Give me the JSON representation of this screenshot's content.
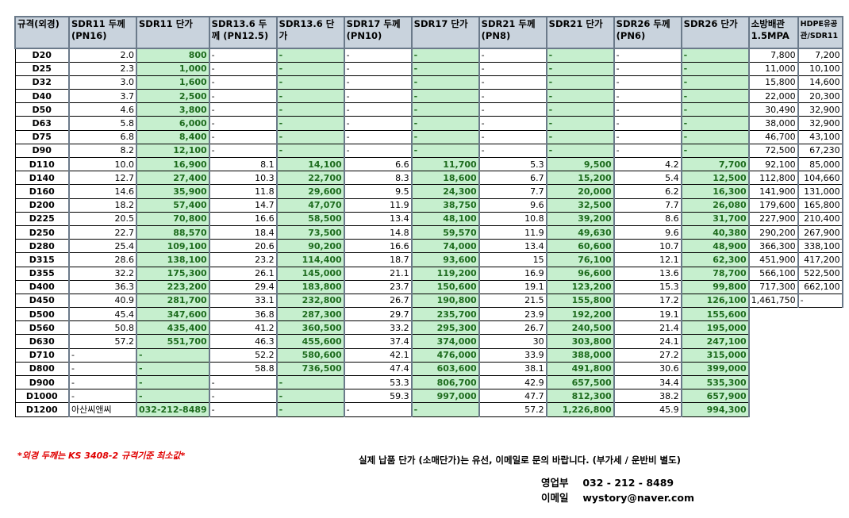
{
  "headers": [
    "규격(외경)",
    "SDR11 두께 (PN16)",
    "SDR11 단가",
    "SDR13.6 두께 (PN12.5)",
    "SDR13.6 단가",
    "SDR17 두께 (PN10)",
    "SDR17 단가",
    "SDR21 두께 (PN8)",
    "SDR21 단가",
    "SDR26 두께 (PN6)",
    "SDR26 단가",
    "소방배관 1.5MPA",
    "HDPE유공관/SDR11"
  ],
  "rows": [
    [
      "D20",
      "2.0",
      "800",
      "-",
      "-",
      "-",
      "-",
      "-",
      "-",
      "-",
      "-",
      "7,800",
      "7,200"
    ],
    [
      "D25",
      "2.3",
      "1,000",
      "-",
      "-",
      "-",
      "-",
      "-",
      "-",
      "-",
      "-",
      "11,000",
      "10,100"
    ],
    [
      "D32",
      "3.0",
      "1,600",
      "-",
      "-",
      "-",
      "-",
      "-",
      "-",
      "-",
      "-",
      "15,800",
      "14,600"
    ],
    [
      "D40",
      "3.7",
      "2,500",
      "-",
      "-",
      "-",
      "-",
      "-",
      "-",
      "-",
      "-",
      "22,000",
      "20,300"
    ],
    [
      "D50",
      "4.6",
      "3,800",
      "-",
      "-",
      "-",
      "-",
      "-",
      "-",
      "-",
      "-",
      "30,490",
      "32,900"
    ],
    [
      "D63",
      "5.8",
      "6,000",
      "-",
      "-",
      "-",
      "-",
      "-",
      "-",
      "-",
      "-",
      "38,000",
      "32,900"
    ],
    [
      "D75",
      "6.8",
      "8,400",
      "-",
      "-",
      "-",
      "-",
      "-",
      "-",
      "-",
      "-",
      "46,700",
      "43,100"
    ],
    [
      "D90",
      "8.2",
      "12,100",
      "-",
      "-",
      "-",
      "-",
      "-",
      "-",
      "-",
      "-",
      "72,500",
      "67,230"
    ],
    [
      "D110",
      "10.0",
      "16,900",
      "8.1",
      "14,100",
      "6.6",
      "11,700",
      "5.3",
      "9,500",
      "4.2",
      "7,700",
      "92,100",
      "85,000"
    ],
    [
      "D140",
      "12.7",
      "27,400",
      "10.3",
      "22,700",
      "8.3",
      "18,600",
      "6.7",
      "15,200",
      "5.4",
      "12,500",
      "112,800",
      "104,660"
    ],
    [
      "D160",
      "14.6",
      "35,900",
      "11.8",
      "29,600",
      "9.5",
      "24,300",
      "7.7",
      "20,000",
      "6.2",
      "16,300",
      "141,900",
      "131,000"
    ],
    [
      "D200",
      "18.2",
      "57,400",
      "14.7",
      "47,070",
      "11.9",
      "38,750",
      "9.6",
      "32,500",
      "7.7",
      "26,080",
      "179,600",
      "165,800"
    ],
    [
      "D225",
      "20.5",
      "70,800",
      "16.6",
      "58,500",
      "13.4",
      "48,100",
      "10.8",
      "39,200",
      "8.6",
      "31,700",
      "227,900",
      "210,400"
    ],
    [
      "D250",
      "22.7",
      "88,570",
      "18.4",
      "73,500",
      "14.8",
      "59,570",
      "11.9",
      "49,630",
      "9.6",
      "40,380",
      "290,200",
      "267,900"
    ],
    [
      "D280",
      "25.4",
      "109,100",
      "20.6",
      "90,200",
      "16.6",
      "74,000",
      "13.4",
      "60,600",
      "10.7",
      "48,900",
      "366,300",
      "338,100"
    ],
    [
      "D315",
      "28.6",
      "138,100",
      "23.2",
      "114,400",
      "18.7",
      "93,600",
      "15",
      "76,100",
      "12.1",
      "62,300",
      "451,900",
      "417,200"
    ],
    [
      "D355",
      "32.2",
      "175,300",
      "26.1",
      "145,000",
      "21.1",
      "119,200",
      "16.9",
      "96,600",
      "13.6",
      "78,700",
      "566,100",
      "522,500"
    ],
    [
      "D400",
      "36.3",
      "223,200",
      "29.4",
      "183,800",
      "23.7",
      "150,600",
      "19.1",
      "123,200",
      "15.3",
      "99,800",
      "717,300",
      "662,100"
    ],
    [
      "D450",
      "40.9",
      "281,700",
      "33.1",
      "232,800",
      "26.7",
      "190,800",
      "21.5",
      "155,800",
      "17.2",
      "126,100",
      "1,461,750",
      "-"
    ],
    [
      "D500",
      "45.4",
      "347,600",
      "36.8",
      "287,300",
      "29.7",
      "235,700",
      "23.9",
      "192,200",
      "19.1",
      "155,600"
    ],
    [
      "D560",
      "50.8",
      "435,400",
      "41.2",
      "360,500",
      "33.2",
      "295,300",
      "26.7",
      "240,500",
      "21.4",
      "195,000"
    ],
    [
      "D630",
      "57.2",
      "551,700",
      "46.3",
      "455,600",
      "37.4",
      "374,000",
      "30",
      "303,800",
      "24.1",
      "247,100"
    ],
    [
      "D710",
      "-",
      "-",
      "52.2",
      "580,600",
      "42.1",
      "476,000",
      "33.9",
      "388,000",
      "27.2",
      "315,000"
    ],
    [
      "D800",
      "-",
      "-",
      "58.8",
      "736,500",
      "47.4",
      "603,600",
      "38.1",
      "491,800",
      "30.6",
      "399,000"
    ],
    [
      "D900",
      "-",
      "-",
      "-",
      "-",
      "53.3",
      "806,700",
      "42.9",
      "657,500",
      "34.4",
      "535,300"
    ],
    [
      "D1000",
      "-",
      "-",
      "-",
      "-",
      "59.3",
      "997,000",
      "47.7",
      "812,300",
      "38.2",
      "657,900"
    ],
    [
      "D1200",
      "아산씨앤씨",
      "032-212-8489",
      "-",
      "-",
      "-",
      "-",
      "57.2",
      "1,226,800",
      "45.9",
      "994,300"
    ]
  ],
  "note": "*외경 두께는  KS 3408-2 규격기준 최소값*",
  "info": "실제 납품 단가 (소매단가)는 유선, 이메일로 문의 바랍니다. (부가세 / 운반비 별도)",
  "contact": {
    "sales_label": "영업부",
    "sales_value": "032 - 212 - 8489",
    "email_label": "이메일",
    "email_value": "wystory@naver.com"
  }
}
